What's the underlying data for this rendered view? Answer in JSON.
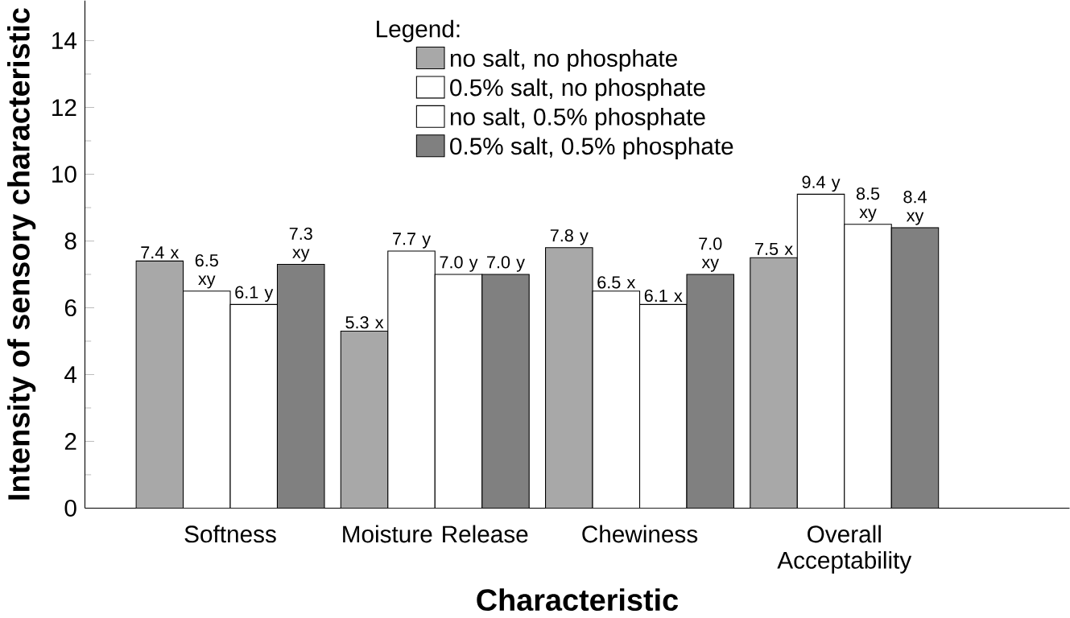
{
  "chart_data": {
    "type": "bar",
    "xlabel": "Characteristic",
    "ylabel": "Intensity of sensory characteristic",
    "legend_title": "Legend:",
    "categories": [
      "Softness",
      "Moisture Release",
      "Chewiness",
      "Overall Acceptability"
    ],
    "series": [
      {
        "name": "no salt, no phosphate",
        "color": "#a8a8a8",
        "values": [
          7.4,
          5.3,
          7.8,
          7.5
        ],
        "value_labels": [
          "7.4 x",
          "5.3 x",
          "7.8 y",
          "7.5 x"
        ]
      },
      {
        "name": "0.5% salt, no phosphate",
        "color": "#ffffff",
        "values": [
          6.5,
          7.7,
          6.5,
          9.4
        ],
        "value_labels": [
          "6.5 xy",
          "7.7 y",
          "6.5 x",
          "9.4 y"
        ]
      },
      {
        "name": "no salt, 0.5% phosphate",
        "color": "#ffffff",
        "values": [
          6.1,
          7.0,
          6.1,
          8.5
        ],
        "value_labels": [
          "6.1 y",
          "7.0 y",
          "6.1 x",
          "8.5 xy"
        ]
      },
      {
        "name": "0.5% salt, 0.5% phosphate",
        "color": "#808080",
        "values": [
          7.3,
          7.0,
          7.0,
          8.4
        ],
        "value_labels": [
          "7.3 xy",
          "7.0 y",
          "7.0 xy",
          "8.4 xy"
        ]
      }
    ],
    "ylim": [
      0,
      15.2
    ],
    "yticks": [
      0,
      2,
      4,
      6,
      8,
      10,
      12,
      14
    ],
    "legend": "top",
    "grid": false
  }
}
